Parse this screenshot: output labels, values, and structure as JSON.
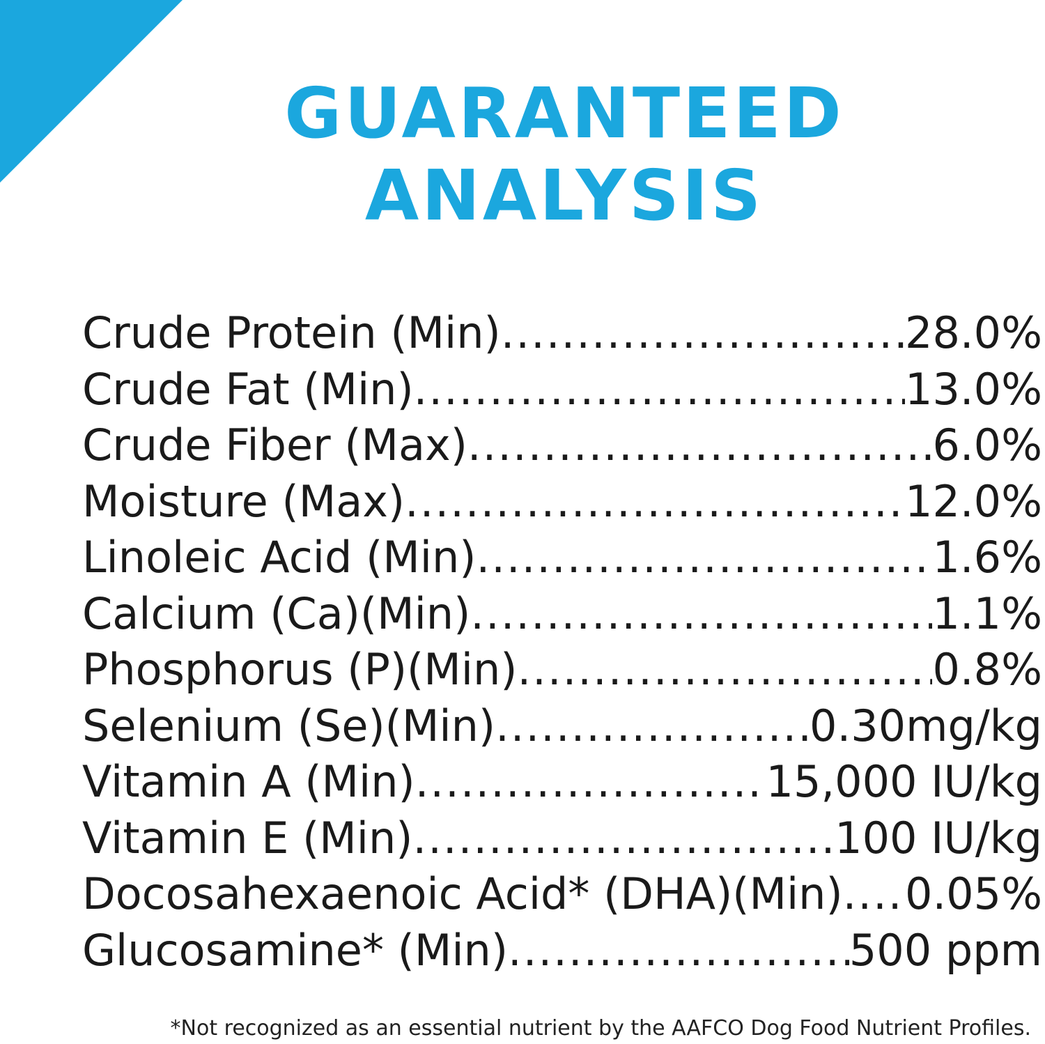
{
  "colors": {
    "accent": "#1ba7de",
    "text": "#1a1a1a",
    "background": "#ffffff"
  },
  "title": {
    "line1": "GUARANTEED",
    "line2": "ANALYSIS"
  },
  "rows": [
    {
      "label": "Crude Protein (Min)",
      "value": "28.0%"
    },
    {
      "label": "Crude Fat (Min)",
      "value": "13.0%"
    },
    {
      "label": "Crude Fiber (Max)",
      "value": "6.0%"
    },
    {
      "label": "Moisture (Max)",
      "value": "12.0%"
    },
    {
      "label": "Linoleic Acid (Min)",
      "value": "1.6%"
    },
    {
      "label": "Calcium (Ca)(Min)",
      "value": "1.1%"
    },
    {
      "label": "Phosphorus (P)(Min)",
      "value": "0.8%"
    },
    {
      "label": "Selenium (Se)(Min)",
      "value": "0.30mg/kg"
    },
    {
      "label": "Vitamin A (Min)",
      "value": "15,000 IU/kg"
    },
    {
      "label": "Vitamin E (Min)",
      "value": "100 IU/kg"
    },
    {
      "label": "Docosahexaenoic Acid* (DHA)(Min)",
      "value": "0.05%"
    },
    {
      "label": "Glucosamine* (Min)",
      "value": "500 ppm"
    }
  ],
  "footnote": "*Not recognized as an essential nutrient by the AAFCO Dog Food Nutrient Profiles."
}
